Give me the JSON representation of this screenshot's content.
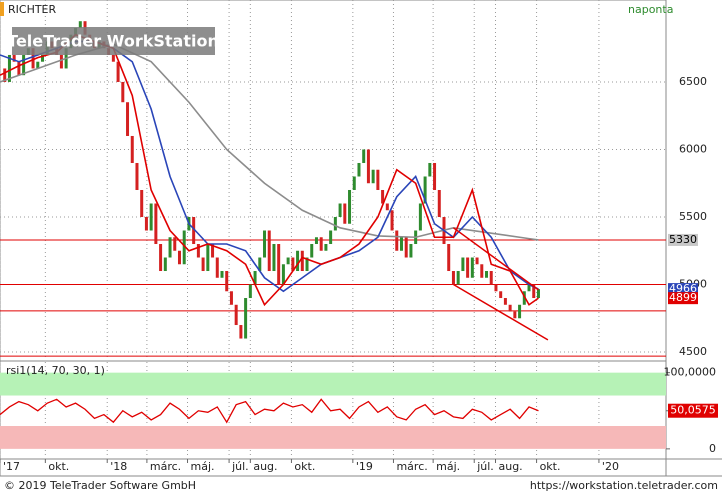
{
  "header": {
    "symbol": "RICHTER",
    "period": "naponta",
    "watermark": "TeleTrader WorkStation"
  },
  "chart_data": [
    {
      "type": "price",
      "xlim": [
        0,
        141
      ],
      "xticks": [
        {
          "value": 0,
          "label": "'17"
        },
        {
          "value": 9.6,
          "label": "okt."
        },
        {
          "value": 22.7,
          "label": "'18"
        },
        {
          "value": 31.1,
          "label": "márc."
        },
        {
          "value": 39.7,
          "label": "máj."
        },
        {
          "value": 48.5,
          "label": "júl."
        },
        {
          "value": 53,
          "label": "aug."
        },
        {
          "value": 61.7,
          "label": "okt."
        },
        {
          "value": 74.7,
          "label": "'19"
        },
        {
          "value": 83.3,
          "label": "márc."
        },
        {
          "value": 91.7,
          "label": "máj."
        },
        {
          "value": 100.4,
          "label": "júl."
        },
        {
          "value": 104.9,
          "label": "aug."
        },
        {
          "value": 113.6,
          "label": "okt."
        },
        {
          "value": 126.8,
          "label": "'20"
        }
      ],
      "ylim": [
        4441,
        7107
      ],
      "yticks": [
        4500,
        5000,
        5500,
        6000,
        6500
      ],
      "grid": true,
      "up_color": "#2e8b2e",
      "down_color": "#d42020",
      "x": [
        0,
        1,
        2,
        3,
        4,
        5,
        6,
        7,
        8,
        9,
        10,
        11,
        12,
        13,
        14,
        15,
        16,
        17,
        18,
        19,
        20,
        21,
        22,
        23,
        24,
        25,
        26,
        27,
        28,
        29,
        30,
        31,
        32,
        33,
        34,
        35,
        36,
        37,
        38,
        39,
        40,
        41,
        42,
        43,
        44,
        45,
        46,
        47,
        48,
        49,
        50,
        51,
        52,
        53,
        54,
        55,
        56,
        57,
        58,
        59,
        60,
        61,
        62,
        63,
        64,
        65,
        66,
        67,
        68,
        69,
        70,
        71,
        72,
        73,
        74,
        75,
        76,
        77,
        78,
        79,
        80,
        81,
        82,
        83,
        84,
        85,
        86,
        87,
        88,
        89,
        90,
        91,
        92,
        93,
        94,
        95,
        96,
        97,
        98,
        99,
        100,
        101,
        102,
        103,
        104,
        105,
        106,
        107,
        108,
        109,
        110,
        111,
        112,
        113,
        114
      ],
      "values": [
        6600,
        6500,
        6700,
        6650,
        6550,
        6700,
        6750,
        6600,
        6650,
        6700,
        6800,
        6750,
        6700,
        6600,
        6750,
        6850,
        6900,
        6950,
        6850,
        6800,
        6750,
        6800,
        6750,
        6700,
        6650,
        6500,
        6350,
        6100,
        5900,
        5700,
        5500,
        5400,
        5600,
        5300,
        5100,
        5200,
        5350,
        5250,
        5150,
        5400,
        5500,
        5300,
        5200,
        5100,
        5300,
        5200,
        5050,
        5100,
        4950,
        4850,
        4700,
        4600,
        4900,
        5000,
        5100,
        5200,
        5400,
        5100,
        5300,
        5000,
        5150,
        5200,
        5100,
        5250,
        5100,
        5200,
        5300,
        5350,
        5250,
        5300,
        5400,
        5500,
        5600,
        5450,
        5700,
        5800,
        5900,
        6000,
        5750,
        5850,
        5700,
        5600,
        5550,
        5400,
        5250,
        5350,
        5200,
        5300,
        5400,
        5600,
        5800,
        5900,
        5700,
        5500,
        5300,
        5100,
        5000,
        5100,
        5200,
        5050,
        5200,
        5150,
        5050,
        5100,
        5000,
        4950,
        4900,
        4850,
        4800,
        4750,
        4850,
        4950,
        5000,
        4900,
        4966
      ],
      "series": [
        {
          "color": "#8c8c8c",
          "x": [
            0,
            8,
            16,
            24,
            32,
            40,
            48,
            56,
            64,
            72,
            80,
            88,
            96,
            104,
            112,
            114
          ],
          "values": [
            6500,
            6600,
            6700,
            6780,
            6650,
            6350,
            6000,
            5750,
            5550,
            5420,
            5360,
            5350,
            5420,
            5380,
            5340,
            5330
          ],
          "last_label": "5330",
          "label_color": "#c8c8c8",
          "label_text": "#000"
        },
        {
          "color": "#2a45b8",
          "x": [
            0,
            4,
            8,
            12,
            16,
            20,
            24,
            28,
            32,
            36,
            40,
            44,
            48,
            52,
            56,
            60,
            64,
            68,
            72,
            76,
            80,
            84,
            88,
            92,
            96,
            100,
            104,
            108,
            112,
            114
          ],
          "values": [
            6700,
            6650,
            6700,
            6750,
            6800,
            6800,
            6750,
            6650,
            6300,
            5800,
            5450,
            5300,
            5300,
            5250,
            5050,
            4950,
            5050,
            5150,
            5200,
            5250,
            5350,
            5650,
            5800,
            5450,
            5350,
            5500,
            5350,
            5100,
            5000,
            4966
          ],
          "last_label": "4966",
          "label_color": "#2a45b8",
          "label_text": "#fff"
        },
        {
          "color": "#e00000",
          "x": [
            0,
            4,
            8,
            12,
            16,
            20,
            24,
            28,
            32,
            36,
            40,
            44,
            48,
            52,
            56,
            60,
            64,
            68,
            72,
            76,
            80,
            84,
            88,
            92,
            96,
            100,
            104,
            108,
            112,
            114
          ],
          "values": [
            6550,
            6620,
            6680,
            6720,
            6850,
            6800,
            6750,
            6400,
            5700,
            5400,
            5250,
            5300,
            5250,
            5150,
            4850,
            5000,
            5200,
            5150,
            5200,
            5300,
            5500,
            5850,
            5750,
            5350,
            5350,
            5700,
            5150,
            5100,
            4850,
            4899
          ],
          "last_label": "4899",
          "label_color": "#e00000",
          "label_text": "#fff"
        }
      ],
      "levels": [
        5330,
        5000,
        4805,
        4470
      ],
      "level_color": "#e00000",
      "trendlines": [
        {
          "x": [
            96,
            114
          ],
          "values": [
            5420,
            4960
          ]
        },
        {
          "x": [
            96,
            116
          ],
          "values": [
            5000,
            4590
          ]
        }
      ]
    },
    {
      "type": "oscillator",
      "title": "rsi1(14, 70, 30, 1)",
      "xlim": [
        0,
        141
      ],
      "ylim": [
        -12,
        114
      ],
      "yticks": [
        {
          "value": 100,
          "label": "100,0000"
        },
        {
          "value": 50,
          "label": "50,0000"
        },
        0
      ],
      "bands": [
        {
          "from": 70,
          "to": 100,
          "color": "#b6f2b6"
        },
        {
          "from": 0,
          "to": 30,
          "color": "#f6b8b8"
        }
      ],
      "color": "#e00000",
      "x": [
        0,
        2,
        4,
        6,
        8,
        10,
        12,
        14,
        16,
        18,
        20,
        22,
        24,
        26,
        28,
        30,
        32,
        34,
        36,
        38,
        40,
        42,
        44,
        46,
        48,
        50,
        52,
        54,
        56,
        58,
        60,
        62,
        64,
        66,
        68,
        70,
        72,
        74,
        76,
        78,
        80,
        82,
        84,
        86,
        88,
        90,
        92,
        94,
        96,
        98,
        100,
        102,
        104,
        106,
        108,
        110,
        112,
        114
      ],
      "values": [
        45,
        55,
        62,
        58,
        50,
        60,
        65,
        55,
        60,
        52,
        40,
        45,
        35,
        50,
        42,
        48,
        38,
        45,
        60,
        52,
        40,
        50,
        48,
        55,
        35,
        58,
        62,
        45,
        52,
        50,
        60,
        55,
        58,
        48,
        65,
        50,
        52,
        40,
        55,
        62,
        48,
        55,
        42,
        38,
        52,
        58,
        45,
        50,
        42,
        40,
        52,
        48,
        38,
        45,
        52,
        40,
        55,
        50.0575
      ],
      "last_label": "50,0575"
    }
  ],
  "footer": {
    "copyright": "© 2019 TeleTrader Software GmbH",
    "url": "https://workstation.teletrader.com"
  }
}
